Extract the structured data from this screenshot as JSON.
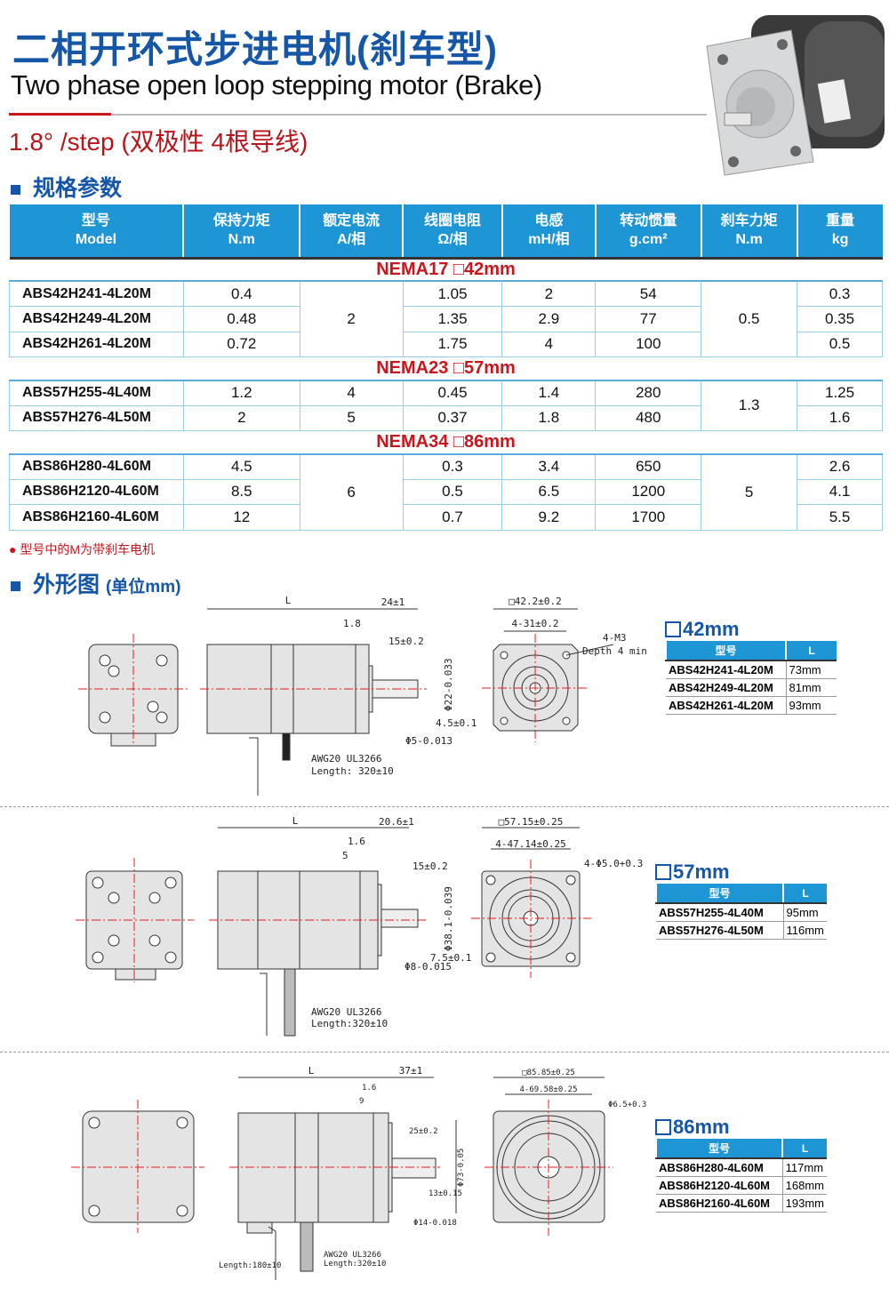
{
  "header": {
    "title_cn": "二相开环式步进电机(刹车型)",
    "title_en": "Two phase open loop stepping motor (Brake)",
    "step_angle": "1.8° /step (双极性 4根导线)"
  },
  "colors": {
    "brand_blue": "#1656a6",
    "table_header": "#1e96d6",
    "accent_red": "#c8161d"
  },
  "spec_section": {
    "heading": "规格参数",
    "columns": [
      {
        "cn": "型号",
        "en": "Model"
      },
      {
        "cn": "保持力矩",
        "en": "N.m"
      },
      {
        "cn": "额定电流",
        "en": "A/相"
      },
      {
        "cn": "线圈电阻",
        "en": "Ω/相"
      },
      {
        "cn": "电感",
        "en": "mH/相"
      },
      {
        "cn": "转动惯量",
        "en": "g.cm²"
      },
      {
        "cn": "刹车力矩",
        "en": "N.m"
      },
      {
        "cn": "重量",
        "en": "kg"
      }
    ],
    "groups": [
      {
        "name": "NEMA17 □42mm",
        "current": "2",
        "brake": "0.5",
        "rows": [
          {
            "model": "ABS42H241-4L20M",
            "torque": "0.4",
            "resistance": "1.05",
            "inductance": "2",
            "inertia": "54",
            "weight": "0.3"
          },
          {
            "model": "ABS42H249-4L20M",
            "torque": "0.48",
            "resistance": "1.35",
            "inductance": "2.9",
            "inertia": "77",
            "weight": "0.35"
          },
          {
            "model": "ABS42H261-4L20M",
            "torque": "0.72",
            "resistance": "1.75",
            "inductance": "4",
            "inertia": "100",
            "weight": "0.5"
          }
        ]
      },
      {
        "name": "NEMA23 □57mm",
        "brake": "1.3",
        "rows": [
          {
            "model": "ABS57H255-4L40M",
            "torque": "1.2",
            "current": "4",
            "resistance": "0.45",
            "inductance": "1.4",
            "inertia": "280",
            "weight": "1.25"
          },
          {
            "model": "ABS57H276-4L50M",
            "torque": "2",
            "current": "5",
            "resistance": "0.37",
            "inductance": "1.8",
            "inertia": "480",
            "weight": "1.6"
          }
        ]
      },
      {
        "name": "NEMA34 □86mm",
        "current": "6",
        "brake": "5",
        "rows": [
          {
            "model": "ABS86H280-4L60M",
            "torque": "4.5",
            "resistance": "0.3",
            "inductance": "3.4",
            "inertia": "650",
            "weight": "2.6"
          },
          {
            "model": "ABS86H2120-4L60M",
            "torque": "8.5",
            "resistance": "0.5",
            "inductance": "6.5",
            "inertia": "1200",
            "weight": "4.1"
          },
          {
            "model": "ABS86H2160-4L60M",
            "torque": "12",
            "resistance": "0.7",
            "inductance": "9.2",
            "inertia": "1700",
            "weight": "5.5"
          }
        ]
      }
    ],
    "note": "● 型号中的M为带刹车电机"
  },
  "dim_section": {
    "heading": "外形图",
    "unit": "(单位mm)",
    "col_model": "型号",
    "col_L": "L",
    "frames": [
      {
        "size": "42mm",
        "dims": {
          "L": "L",
          "shaft_len": "24±1",
          "flange": "1.8",
          "key_len": "15±0.2",
          "boss": "Φ22-0.033",
          "flat": "4.5±0.1",
          "shaft_d": "Φ5-0.013",
          "square": "□42.2±0.2",
          "pitch": "4-31±0.2",
          "holes": "4-M3",
          "depth": "Depth 4 min",
          "cable1": "AWG20 UL3266",
          "cable2": "Length: 320±10"
        },
        "rows": [
          {
            "model": "ABS42H241-4L20M",
            "L": "73mm"
          },
          {
            "model": "ABS42H249-4L20M",
            "L": "81mm"
          },
          {
            "model": "ABS42H261-4L20M",
            "L": "93mm"
          }
        ]
      },
      {
        "size": "57mm",
        "dims": {
          "L": "L",
          "shaft_len": "20.6±1",
          "flange": "1.6",
          "step": "5",
          "key_len": "15±0.2",
          "boss": "Φ38.1-0.039",
          "flat": "7.5±0.1",
          "shaft_d": "Φ8-0.015",
          "square": "□57.15±0.25",
          "pitch": "4-47.14±0.25",
          "holes": "4-Φ5.0+0.3",
          "cable1": "AWG20 UL3266",
          "cable2": "Length:320±10"
        },
        "rows": [
          {
            "model": "ABS57H255-4L40M",
            "L": "95mm"
          },
          {
            "model": "ABS57H276-4L50M",
            "L": "116mm"
          }
        ]
      },
      {
        "size": "86mm",
        "dims": {
          "L": "L",
          "shaft_len": "37±1",
          "flange": "1.6",
          "step": "9",
          "key_len": "25±0.2",
          "boss": "Φ73-0.05",
          "flat": "13±0.15",
          "shaft_d": "Φ14-0.018",
          "square": "□85.85±0.25",
          "pitch": "4-69.58±0.25",
          "holes": "Φ6.5+0.3",
          "brake_cable": "Length:180±10",
          "cable1": "AWG20 UL3266",
          "cable2": "Length:320±10"
        },
        "rows": [
          {
            "model": "ABS86H280-4L60M",
            "L": "117mm"
          },
          {
            "model": "ABS86H2120-4L60M",
            "L": "168mm"
          },
          {
            "model": "ABS86H2160-4L60M",
            "L": "193mm"
          }
        ]
      }
    ]
  }
}
